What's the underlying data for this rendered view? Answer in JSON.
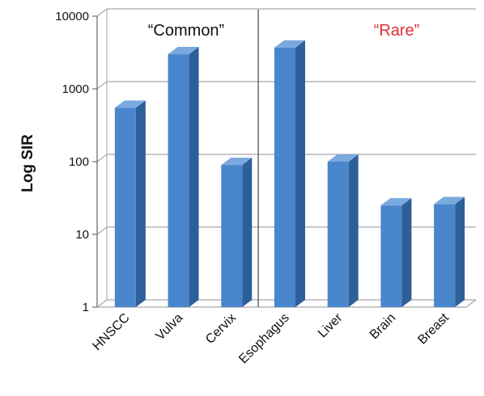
{
  "chart_data": {
    "type": "bar",
    "ylabel": "Log SIR",
    "xlabel": "",
    "y_scale": "log",
    "ylim": [
      1,
      10000
    ],
    "yticks": [
      1,
      10,
      100,
      1000,
      10000
    ],
    "ytick_labels": [
      "1",
      "10",
      "100",
      "1000",
      "10000"
    ],
    "categories": [
      "HNSCC",
      "Vulva",
      "Cervix",
      "Esophagus",
      "Liver",
      "Brain",
      "Breast"
    ],
    "values": [
      550,
      3000,
      90,
      3700,
      100,
      25,
      26
    ],
    "grid": true,
    "bar_style": "3d",
    "annotations": [
      {
        "text": "“Common”",
        "color": "#111111"
      },
      {
        "text": "“Rare”",
        "color": "#e03030"
      }
    ],
    "group_divider_after_index": 2
  },
  "colors": {
    "bar_front": "#4a86cc",
    "bar_side": "#2d5f99",
    "bar_top": "#7aa9e0",
    "grid": "#a6a6a6",
    "axis": "#6e6e6e",
    "common_label": "#111111",
    "rare_label": "#e03030"
  }
}
